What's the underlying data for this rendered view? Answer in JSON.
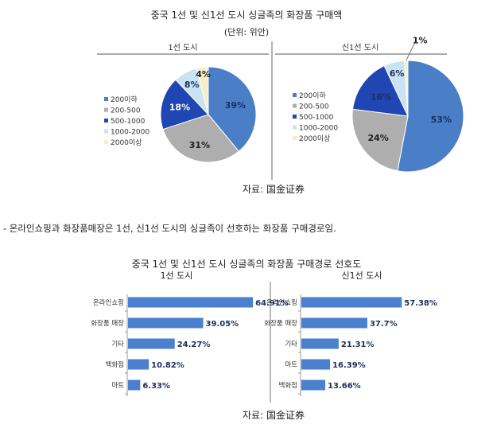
{
  "pie_section": {
    "title": "중국 1선 및 신1선 도시 싱글족의 화장품 구매액",
    "unit": "(단위: 위안)",
    "source": "자료: 国金证券"
  },
  "note": "- 온라인쇼핑과 화장품매장은 1선, 신1선 도시의 싱글족이 선호하는 화장품 구매경로임.",
  "bar_section": {
    "title": "중국 1선 및 신1선 도시 싱글족의 화장품 구매경로 선호도",
    "source": "자료: 国金证券"
  },
  "colors": {
    "blue": "#4a7fc8",
    "gray": "#aeaeae",
    "navy": "#1f46b2",
    "lightblue": "#c9e3f3",
    "cream": "#f6efc8",
    "bar": "#4a80cd"
  },
  "chart_data": [
    {
      "type": "pie",
      "title": "1선 도시",
      "categories": [
        "200이하",
        "200-500",
        "500-1000",
        "1000-2000",
        "2000이상"
      ],
      "values": [
        39,
        31,
        18,
        8,
        4
      ],
      "labels": [
        "39%",
        "31%",
        "18%",
        "8%",
        "4%"
      ],
      "legend": "left"
    },
    {
      "type": "pie",
      "title": "신1선 도시",
      "categories": [
        "200이하",
        "200-500",
        "500-1000",
        "1000-2000",
        "2000이상"
      ],
      "values": [
        53,
        24,
        16,
        6,
        1
      ],
      "labels": [
        "53%",
        "24%",
        "16%",
        "6%",
        "1%"
      ],
      "legend": "left"
    },
    {
      "type": "bar",
      "orientation": "horizontal",
      "title": "1선 도시",
      "categories": [
        "온라인쇼핑",
        "화장품 매장",
        "기타",
        "백화점",
        "마트"
      ],
      "values": [
        64.91,
        39.05,
        24.27,
        10.82,
        6.33
      ],
      "labels": [
        "64.91%",
        "39.05%",
        "24.27%",
        "10.82%",
        "6.33%"
      ]
    },
    {
      "type": "bar",
      "orientation": "horizontal",
      "title": "신1선 도시",
      "categories": [
        "온라인쇼핑",
        "화장품 매장",
        "기타",
        "마트",
        "백화점"
      ],
      "values": [
        57.38,
        37.7,
        21.31,
        16.39,
        13.66
      ],
      "labels": [
        "57.38%",
        "37.7%",
        "21.31%",
        "16.39%",
        "13.66%"
      ]
    }
  ]
}
